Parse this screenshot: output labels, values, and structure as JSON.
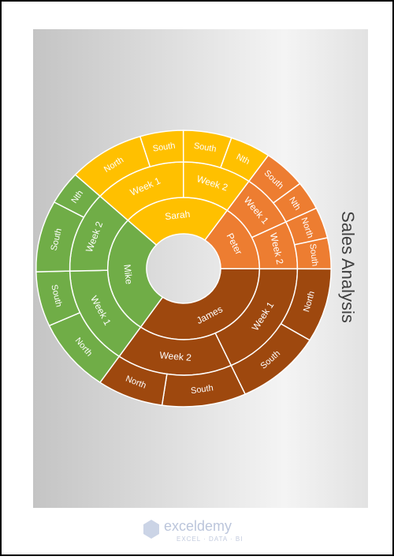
{
  "chart_data": {
    "type": "sunburst",
    "title": "Sales Analysis",
    "groups": [
      {
        "name": "Peter",
        "color": "#ED7D31",
        "children": [
          {
            "name": "Week 1",
            "children": [
              {
                "name": "South",
                "value": 17
              },
              {
                "name": "Nth",
                "value": 12
              }
            ]
          },
          {
            "name": "Week 2",
            "children": [
              {
                "name": "North",
                "value": 13
              },
              {
                "name": "South",
                "value": 13
              }
            ]
          }
        ]
      },
      {
        "name": "James",
        "color": "#9E480E",
        "children": [
          {
            "name": "Week 1",
            "children": [
              {
                "name": "North",
                "value": 31
              },
              {
                "name": "South",
                "value": 34
              }
            ]
          },
          {
            "name": "Week 2",
            "children": [
              {
                "name": "South",
                "value": 33
              },
              {
                "name": "North",
                "value": 26
              }
            ]
          }
        ]
      },
      {
        "name": "Mike",
        "color": "#70AD47",
        "children": [
          {
            "name": "Week 1",
            "children": [
              {
                "name": "North",
                "value": 31
              },
              {
                "name": "South",
                "value": 23
              }
            ]
          },
          {
            "name": "Week 2",
            "children": [
              {
                "name": "South",
                "value": 30
              },
              {
                "name": "Nth",
                "value": 14
              }
            ]
          }
        ]
      },
      {
        "name": "Sarah",
        "color": "#FFC000",
        "children": [
          {
            "name": "Week 1",
            "children": [
              {
                "name": "North",
                "value": 30
              },
              {
                "name": "South",
                "value": 17
              }
            ]
          },
          {
            "name": "Week 2",
            "children": [
              {
                "name": "South",
                "value": 19
              },
              {
                "name": "Nth",
                "value": 16
              }
            ]
          }
        ]
      }
    ]
  },
  "watermark": {
    "brand": "exceldemy",
    "tagline": "EXCEL · DATA · BI"
  }
}
